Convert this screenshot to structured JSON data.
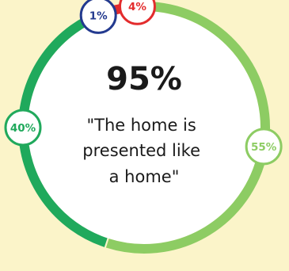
{
  "chart_data": {
    "type": "pie",
    "variant": "donut",
    "headline": "95%",
    "caption_lines": [
      "\"The home is",
      "presented like",
      "a home\""
    ],
    "slices": [
      {
        "label": "55%",
        "value": 55,
        "color": "#8dcc63"
      },
      {
        "label": "40%",
        "value": 40,
        "color": "#20a95c"
      },
      {
        "label": "1%",
        "value": 1,
        "color": "#233a8f"
      },
      {
        "label": "4%",
        "value": 4,
        "color": "#e32c2d"
      }
    ],
    "colors": {
      "background": "#fbf4c9",
      "center_fill": "#ffffff",
      "text": "#1a1a1a"
    }
  }
}
